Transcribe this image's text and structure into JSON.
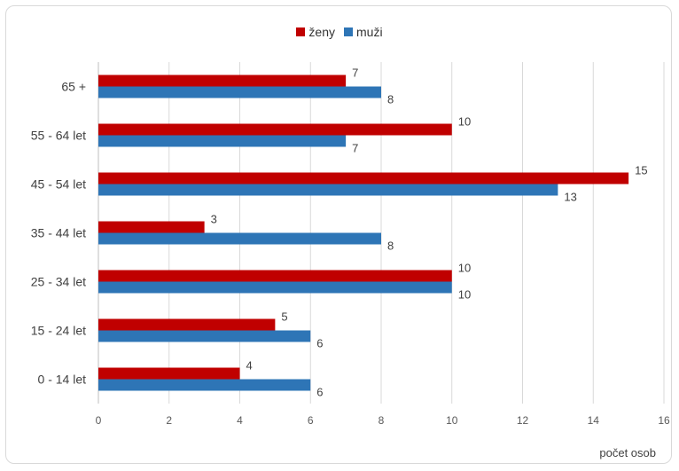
{
  "chart_data": {
    "type": "bar",
    "orientation": "horizontal",
    "categories": [
      "65 +",
      "55 - 64 let",
      "45 - 54 let",
      "35 - 44 let",
      "25 - 34 let",
      "15 - 24 let",
      "0 - 14 let"
    ],
    "series": [
      {
        "name": "ženy",
        "color": "#C00000",
        "values": [
          7,
          10,
          15,
          3,
          10,
          5,
          4
        ]
      },
      {
        "name": "muži",
        "color": "#2E75B6",
        "values": [
          8,
          7,
          13,
          8,
          10,
          6,
          6
        ]
      }
    ],
    "xlabel": "počet osob",
    "xlim": [
      0,
      16
    ],
    "xticks": [
      "0",
      "2",
      "4",
      "6",
      "8",
      "10",
      "12",
      "14",
      "16"
    ],
    "grid": true,
    "legend_position": "top"
  }
}
